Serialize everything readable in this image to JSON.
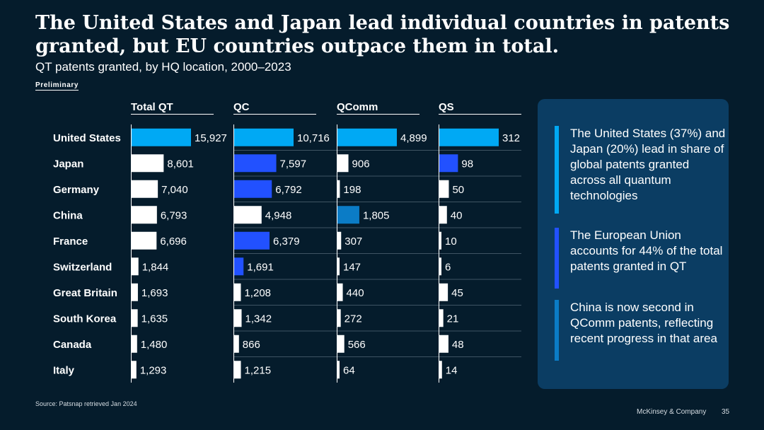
{
  "title": "The United States and Japan lead individual countries in patents granted, but EU countries outpace them in total.",
  "subtitle": "QT patents granted, by HQ location, 2000–2023",
  "preliminary_label": "Preliminary",
  "source": "Source: Patsnap retrieved Jan 2024",
  "brand": "McKinsey & Company",
  "page_number": "35",
  "colors": {
    "background": "#051C2C",
    "bar_default": "#FFFFFF",
    "bar_us": "#00A9F4",
    "bar_eu": "#2251FF",
    "bar_china_qcomm": "#0B7CC6",
    "panel": "#0B3D63",
    "grid": "#7A8B99"
  },
  "chart_data": {
    "type": "bar",
    "orientation": "horizontal",
    "categories": [
      "United States",
      "Japan",
      "Germany",
      "China",
      "France",
      "Switzerland",
      "Great Britain",
      "South Korea",
      "Canada",
      "Italy"
    ],
    "series": [
      {
        "name": "Total QT",
        "values": [
          15927,
          8601,
          7040,
          6793,
          6696,
          1844,
          1693,
          1635,
          1480,
          1293
        ],
        "labels": [
          "15,927",
          "8,601",
          "7,040",
          "6,793",
          "6,696",
          "1,844",
          "1,693",
          "1,635",
          "1,480",
          "1,293"
        ],
        "max": 15927,
        "colors": [
          "us",
          "default",
          "default",
          "default",
          "default",
          "default",
          "default",
          "default",
          "default",
          "default"
        ]
      },
      {
        "name": "QC",
        "values": [
          10716,
          7597,
          6792,
          4948,
          6379,
          1691,
          1208,
          1342,
          866,
          1215
        ],
        "labels": [
          "10,716",
          "7,597",
          "6,792",
          "4,948",
          "6,379",
          "1,691",
          "1,208",
          "1,342",
          "866",
          "1,215"
        ],
        "max": 10716,
        "colors": [
          "us",
          "eu",
          "eu",
          "default",
          "eu",
          "eu",
          "default",
          "default",
          "default",
          "default"
        ]
      },
      {
        "name": "QComm",
        "values": [
          4899,
          906,
          198,
          1805,
          307,
          147,
          440,
          272,
          566,
          64
        ],
        "labels": [
          "4,899",
          "906",
          "198",
          "1,805",
          "307",
          "147",
          "440",
          "272",
          "566",
          "64"
        ],
        "max": 4899,
        "colors": [
          "us",
          "default",
          "default",
          "china_qcomm",
          "default",
          "default",
          "default",
          "default",
          "default",
          "default"
        ]
      },
      {
        "name": "QS",
        "values": [
          312,
          98,
          50,
          40,
          10,
          6,
          45,
          21,
          48,
          14
        ],
        "labels": [
          "312",
          "98",
          "50",
          "40",
          "10",
          "6",
          "45",
          "21",
          "48",
          "14"
        ],
        "max": 312,
        "colors": [
          "us",
          "eu",
          "default",
          "default",
          "default",
          "default",
          "default",
          "default",
          "default",
          "default"
        ]
      }
    ],
    "xlabel": "",
    "ylabel": ""
  },
  "notes": [
    {
      "text": "The United States (37%) and Japan (20%) lead in share of global patents granted across all quantum technologies",
      "color": "#00A9F4"
    },
    {
      "text": "The European Union accounts for 44% of the total patents granted in QT",
      "color": "#2251FF"
    },
    {
      "text": "China is now second in QComm patents, reflecting recent progress in that area",
      "color": "#0B7CC6"
    }
  ]
}
